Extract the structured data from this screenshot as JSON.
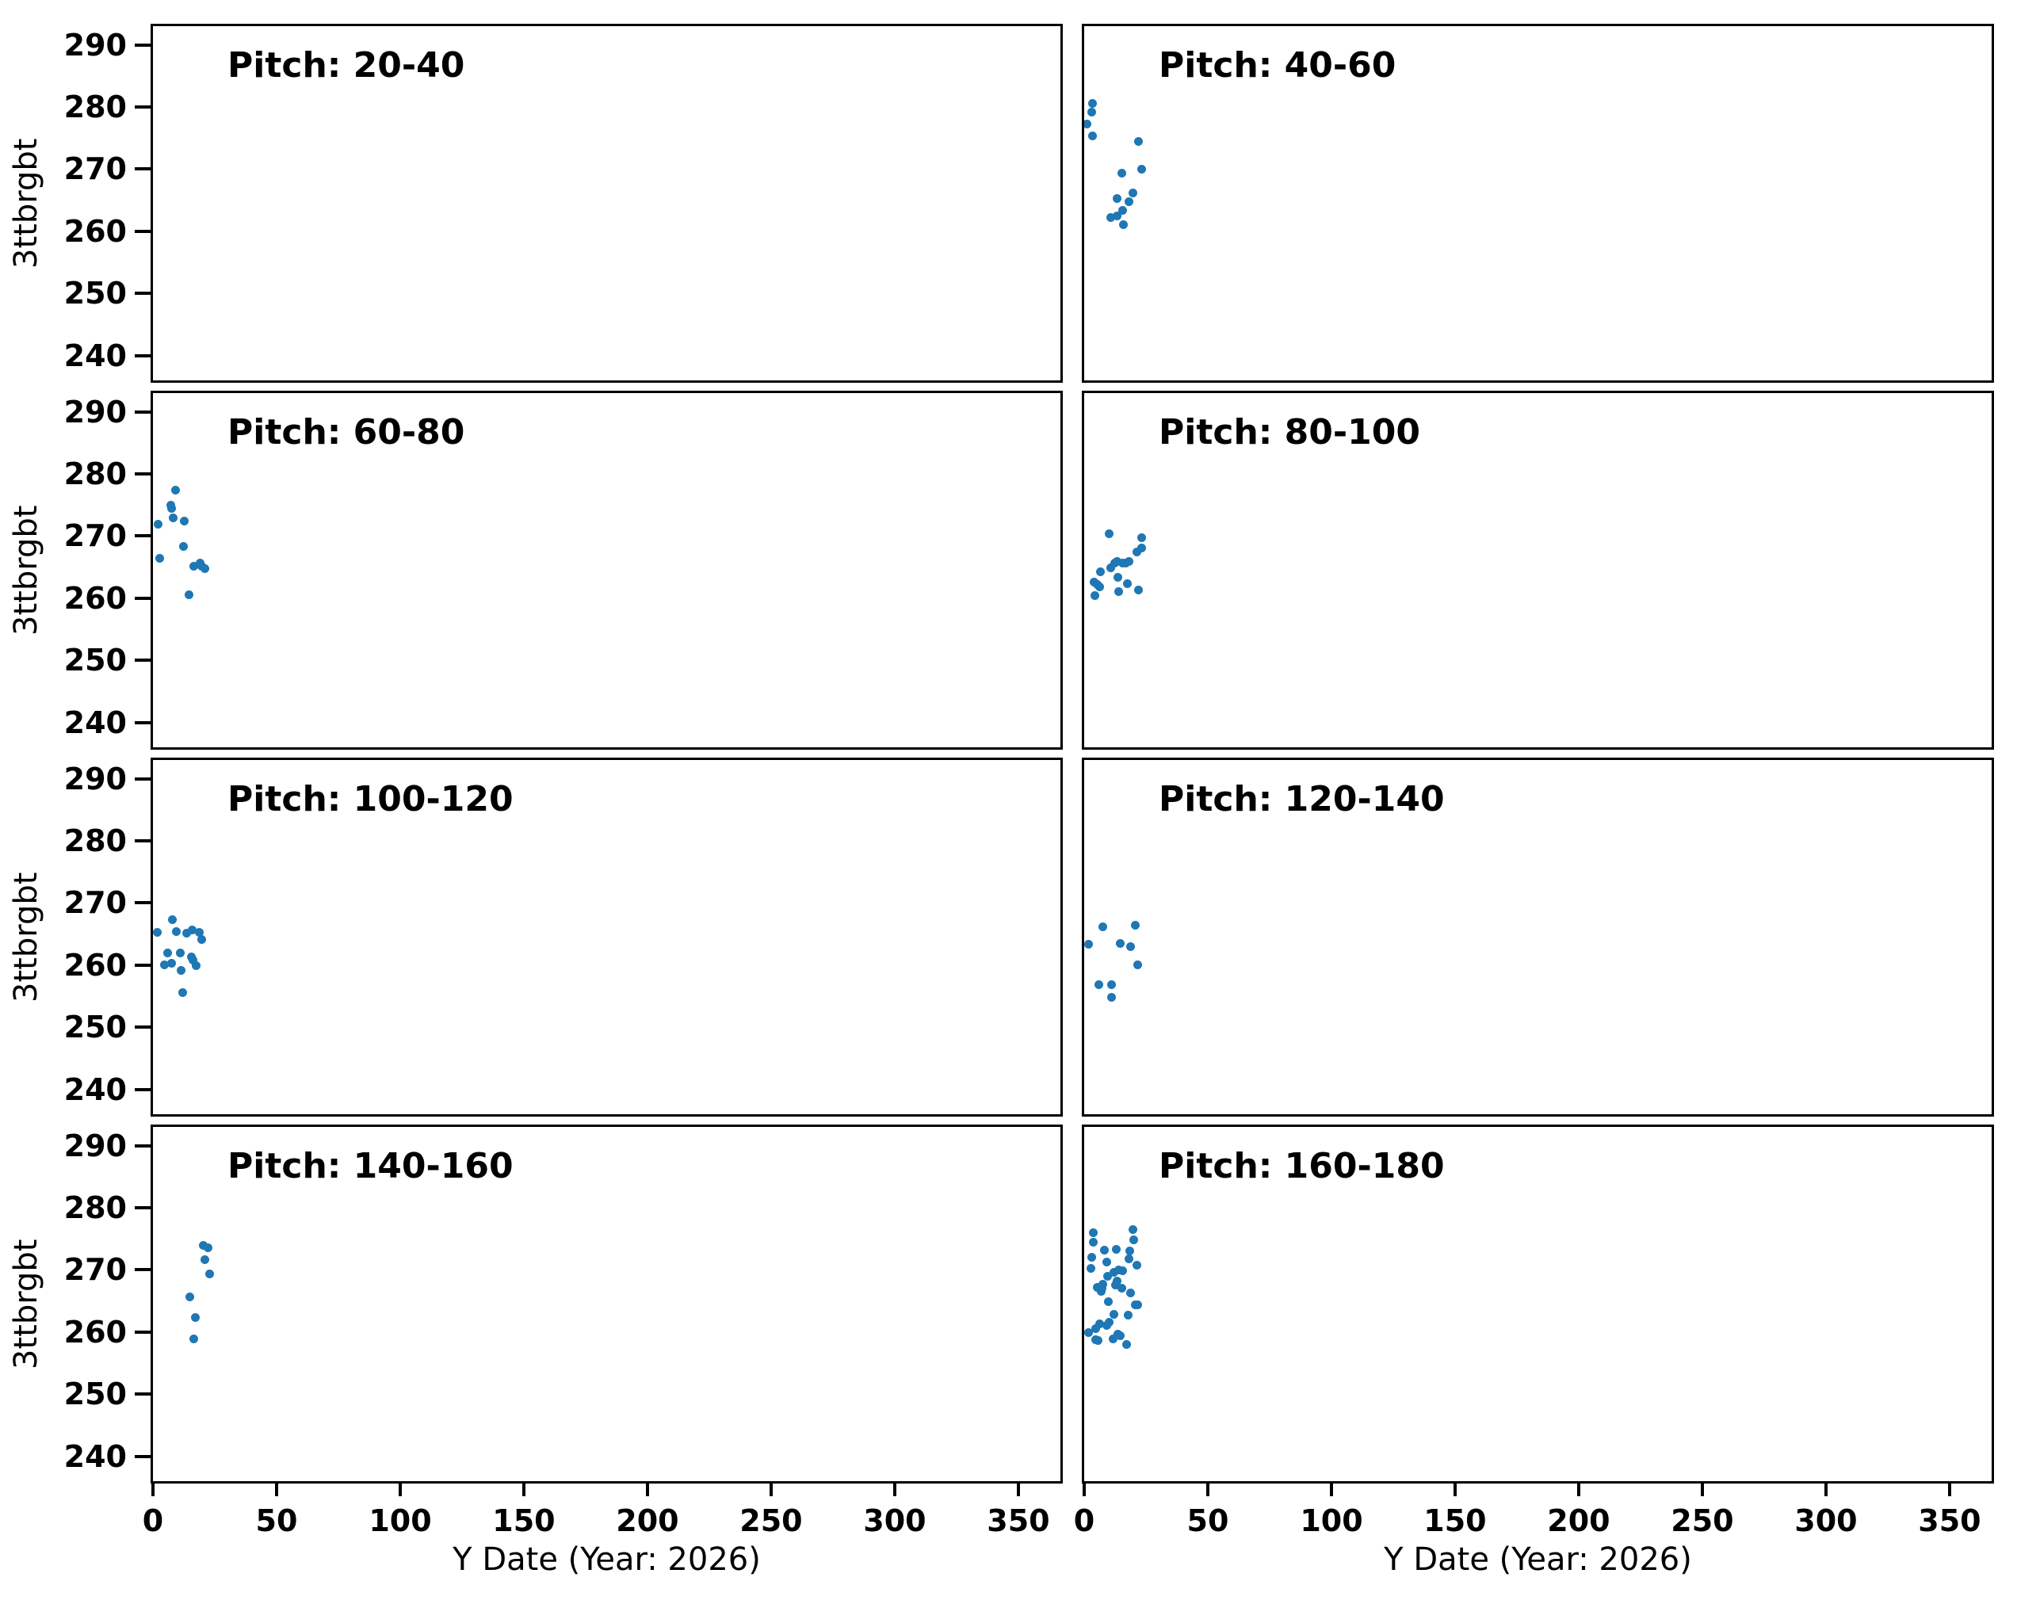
{
  "figure": {
    "background": "#ffffff",
    "spine_color": "#000000",
    "text_color": "#000000",
    "point_color": "#1f77b4"
  },
  "chart_data": {
    "type": "scatter",
    "layout": "4x2 grid of subplots, shared x and y axes, no gridlines, no legend",
    "xlabel": "Y Date (Year: 2026)",
    "ylabel": "3ttbrgbt",
    "x_ticks": [
      0,
      50,
      100,
      150,
      200,
      250,
      300,
      350
    ],
    "y_ticks": [
      240,
      250,
      260,
      270,
      280,
      290
    ],
    "xlim": [
      0,
      367
    ],
    "ylim": [
      236,
      293
    ],
    "panels": [
      {
        "title": "Pitch: 20-40",
        "points": []
      },
      {
        "title": "Pitch: 40-60",
        "points": [
          [
            3.5,
            280.6
          ],
          [
            3.1,
            279.2
          ],
          [
            1.2,
            277.2
          ],
          [
            3.4,
            275.4
          ],
          [
            22.1,
            274.4
          ],
          [
            23.1,
            270.0
          ],
          [
            15.3,
            269.4
          ],
          [
            19.7,
            266.1
          ],
          [
            13.2,
            265.3
          ],
          [
            18.0,
            264.8
          ],
          [
            15.6,
            263.3
          ],
          [
            10.7,
            262.2
          ],
          [
            13.2,
            262.4
          ],
          [
            15.9,
            261.0
          ]
        ]
      },
      {
        "title": "Pitch: 60-80",
        "points": [
          [
            9.1,
            277.4
          ],
          [
            7.1,
            275.0
          ],
          [
            7.6,
            274.5
          ],
          [
            8.2,
            272.9
          ],
          [
            2.1,
            271.9
          ],
          [
            12.8,
            272.4
          ],
          [
            12.3,
            268.3
          ],
          [
            2.8,
            266.4
          ],
          [
            16.5,
            265.2
          ],
          [
            19.1,
            265.6
          ],
          [
            19.8,
            265.1
          ],
          [
            21.1,
            264.7
          ],
          [
            14.5,
            260.6
          ]
        ]
      },
      {
        "title": "Pitch: 80-100",
        "points": [
          [
            10.0,
            270.4
          ],
          [
            23.1,
            269.7
          ],
          [
            21.3,
            267.4
          ],
          [
            23.1,
            268.1
          ],
          [
            12.2,
            265.7
          ],
          [
            13.3,
            265.9
          ],
          [
            15.5,
            265.6
          ],
          [
            16.8,
            265.7
          ],
          [
            18.0,
            265.9
          ],
          [
            10.8,
            264.9
          ],
          [
            6.6,
            264.2
          ],
          [
            13.6,
            263.3
          ],
          [
            3.9,
            262.6
          ],
          [
            5.2,
            262.2
          ],
          [
            6.3,
            261.8
          ],
          [
            17.4,
            262.3
          ],
          [
            21.8,
            261.3
          ],
          [
            14.1,
            261.1
          ],
          [
            4.2,
            260.4
          ]
        ]
      },
      {
        "title": "Pitch: 100-120",
        "points": [
          [
            8.0,
            267.3
          ],
          [
            1.8,
            265.3
          ],
          [
            9.5,
            265.4
          ],
          [
            13.5,
            265.1
          ],
          [
            15.8,
            265.7
          ],
          [
            18.6,
            265.3
          ],
          [
            19.7,
            264.1
          ],
          [
            5.9,
            262.0
          ],
          [
            11.2,
            262.0
          ],
          [
            15.5,
            261.3
          ],
          [
            16.1,
            260.8
          ],
          [
            4.7,
            260.0
          ],
          [
            7.4,
            260.3
          ],
          [
            17.4,
            259.9
          ],
          [
            11.3,
            259.2
          ],
          [
            11.9,
            255.6
          ]
        ]
      },
      {
        "title": "Pitch: 120-140",
        "points": [
          [
            7.5,
            266.2
          ],
          [
            20.8,
            266.4
          ],
          [
            1.9,
            263.3
          ],
          [
            14.5,
            263.5
          ],
          [
            18.8,
            263.0
          ],
          [
            21.6,
            260.0
          ],
          [
            5.8,
            256.8
          ],
          [
            11.2,
            256.8
          ],
          [
            11.2,
            254.8
          ]
        ]
      },
      {
        "title": "Pitch: 140-160",
        "points": [
          [
            20.2,
            273.9
          ],
          [
            22.2,
            273.6
          ],
          [
            20.9,
            271.7
          ],
          [
            22.9,
            269.3
          ],
          [
            15.0,
            265.7
          ],
          [
            17.1,
            262.3
          ],
          [
            16.6,
            258.9
          ]
        ]
      },
      {
        "title": "Pitch: 160-180",
        "points": [
          [
            3.7,
            276.0
          ],
          [
            19.8,
            276.5
          ],
          [
            3.7,
            274.4
          ],
          [
            20.0,
            274.8
          ],
          [
            8.1,
            273.2
          ],
          [
            12.9,
            273.3
          ],
          [
            3.2,
            272.0
          ],
          [
            18.4,
            273.1
          ],
          [
            18.1,
            271.8
          ],
          [
            2.6,
            270.3
          ],
          [
            9.0,
            271.3
          ],
          [
            21.3,
            270.8
          ],
          [
            12.1,
            269.6
          ],
          [
            13.9,
            270.0
          ],
          [
            15.5,
            269.9
          ],
          [
            9.5,
            269.0
          ],
          [
            13.2,
            268.2
          ],
          [
            12.8,
            267.5
          ],
          [
            5.3,
            267.2
          ],
          [
            7.5,
            267.7
          ],
          [
            7.1,
            267.0
          ],
          [
            6.9,
            266.5
          ],
          [
            15.1,
            267.1
          ],
          [
            18.7,
            266.3
          ],
          [
            9.7,
            264.9
          ],
          [
            21.6,
            264.4
          ],
          [
            20.6,
            264.4
          ],
          [
            12.1,
            262.9
          ],
          [
            17.7,
            262.7
          ],
          [
            6.3,
            261.3
          ],
          [
            9.0,
            261.1
          ],
          [
            10.0,
            261.6
          ],
          [
            1.7,
            259.9
          ],
          [
            4.7,
            260.5
          ],
          [
            13.7,
            259.7
          ],
          [
            14.6,
            259.4
          ],
          [
            5.6,
            258.6
          ],
          [
            4.5,
            258.8
          ],
          [
            11.6,
            258.9
          ],
          [
            17.2,
            258.0
          ]
        ]
      }
    ]
  }
}
